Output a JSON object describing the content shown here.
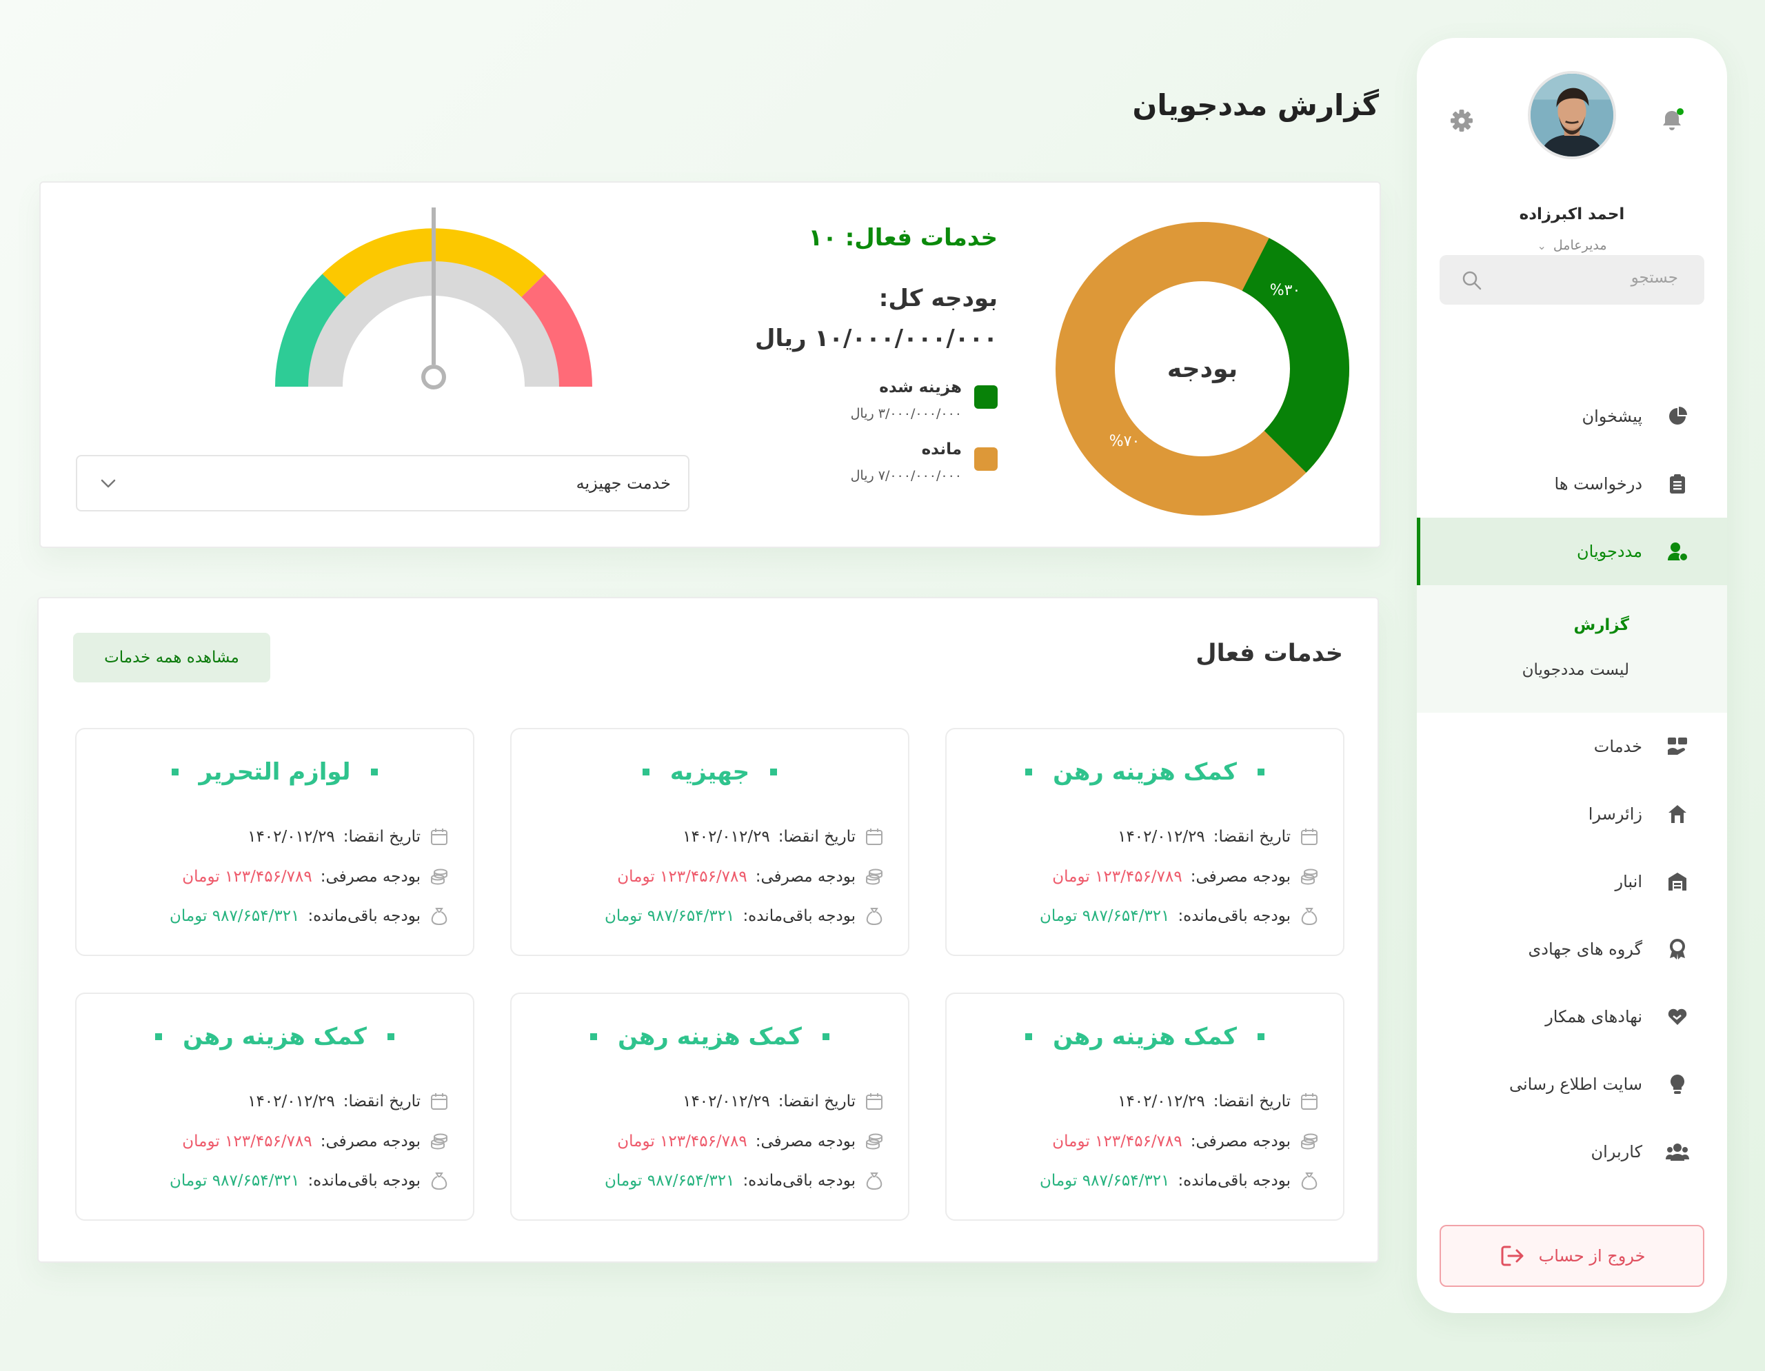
{
  "page": {
    "title": "گزارش مددجویان"
  },
  "user": {
    "name": "احمد اکبرزاده",
    "role": "مدیرعامل"
  },
  "search": {
    "placeholder": "جستجو"
  },
  "sidebar": {
    "items": [
      {
        "label": "پیشخوان",
        "icon": "pie-chart-icon"
      },
      {
        "label": "درخواست ها",
        "icon": "clipboard-icon"
      },
      {
        "label": "مددجویان",
        "icon": "user-badge-icon",
        "active": true
      },
      {
        "label": "خدمات",
        "icon": "services-icon"
      },
      {
        "label": "زائرسرا",
        "icon": "house-icon"
      },
      {
        "label": "انبار",
        "icon": "warehouse-icon"
      },
      {
        "label": "گروه های جهادی",
        "icon": "award-icon"
      },
      {
        "label": "نهادهای همکار",
        "icon": "handshake-heart-icon"
      },
      {
        "label": "سایت اطلاع رسانی",
        "icon": "lightbulb-icon"
      },
      {
        "label": "کاربران",
        "icon": "users-icon"
      }
    ],
    "sub_items": [
      {
        "label": "گزارش",
        "active": true
      },
      {
        "label": "لیست مددجویان"
      }
    ],
    "logout_label": "خروج از حساب"
  },
  "budget": {
    "active_services": "خدمات فعال: ۱۰",
    "total_label": "بودجه کل:",
    "total_value": "۱۰/۰۰۰/۰۰۰/۰۰۰ ریال",
    "center_label": "بودجه",
    "spent": {
      "label": "هزینه شده",
      "amount": "۳/۰۰۰/۰۰۰/۰۰۰ ریال",
      "percent_label": "%۳۰",
      "percent": 30,
      "color": "#088208"
    },
    "remaining": {
      "label": "مانده",
      "amount": "۷/۰۰۰/۰۰۰/۰۰۰ ریال",
      "percent_label": "%۷۰",
      "percent": 70,
      "color": "#dd9838"
    },
    "gauge": {
      "level": 0.5,
      "colors": [
        "#2ecc96",
        "#fcc800",
        "#ff6b78"
      ]
    },
    "selected_service": "خدمت جهیزیه"
  },
  "services": {
    "title": "خدمات فعال",
    "view_all": "مشاهده همه خدمات",
    "cards": [
      {
        "title": "کمک هزینه رهن",
        "expiry_label": "تاریخ انقضا:",
        "expiry": "۱۴۰۲/۰۱۲/۲۹",
        "spent_label": "بودجه مصرفی:",
        "spent": "۱۲۳/۴۵۶/۷۸۹ تومان",
        "remaining_label": "بودجه باقی‌مانده:",
        "remaining": "۹۸۷/۶۵۴/۳۲۱ تومان"
      },
      {
        "title": "جهیزیه",
        "expiry_label": "تاریخ انقضا:",
        "expiry": "۱۴۰۲/۰۱۲/۲۹",
        "spent_label": "بودجه مصرفی:",
        "spent": "۱۲۳/۴۵۶/۷۸۹ تومان",
        "remaining_label": "بودجه باقی‌مانده:",
        "remaining": "۹۸۷/۶۵۴/۳۲۱ تومان"
      },
      {
        "title": "لوازم التحریر",
        "expiry_label": "تاریخ انقضا:",
        "expiry": "۱۴۰۲/۰۱۲/۲۹",
        "spent_label": "بودجه مصرفی:",
        "spent": "۱۲۳/۴۵۶/۷۸۹ تومان",
        "remaining_label": "بودجه باقی‌مانده:",
        "remaining": "۹۸۷/۶۵۴/۳۲۱ تومان"
      },
      {
        "title": "کمک هزینه رهن",
        "expiry_label": "تاریخ انقضا:",
        "expiry": "۱۴۰۲/۰۱۲/۲۹",
        "spent_label": "بودجه مصرفی:",
        "spent": "۱۲۳/۴۵۶/۷۸۹ تومان",
        "remaining_label": "بودجه باقی‌مانده:",
        "remaining": "۹۸۷/۶۵۴/۳۲۱ تومان"
      },
      {
        "title": "کمک هزینه رهن",
        "expiry_label": "تاریخ انقضا:",
        "expiry": "۱۴۰۲/۰۱۲/۲۹",
        "spent_label": "بودجه مصرفی:",
        "spent": "۱۲۳/۴۵۶/۷۸۹ تومان",
        "remaining_label": "بودجه باقی‌مانده:",
        "remaining": "۹۸۷/۶۵۴/۳۲۱ تومان"
      },
      {
        "title": "کمک هزینه رهن",
        "expiry_label": "تاریخ انقضا:",
        "expiry": "۱۴۰۲/۰۱۲/۲۹",
        "spent_label": "بودجه مصرفی:",
        "spent": "۱۲۳/۴۵۶/۷۸۹ تومان",
        "remaining_label": "بودجه باقی‌مانده:",
        "remaining": "۹۸۷/۶۵۴/۳۲۱ تومان"
      }
    ]
  },
  "colors": {
    "brand_green": "#0c8a0c",
    "teal": "#2fc38d",
    "red": "#ee5a6b",
    "logout": "#e0505f"
  }
}
